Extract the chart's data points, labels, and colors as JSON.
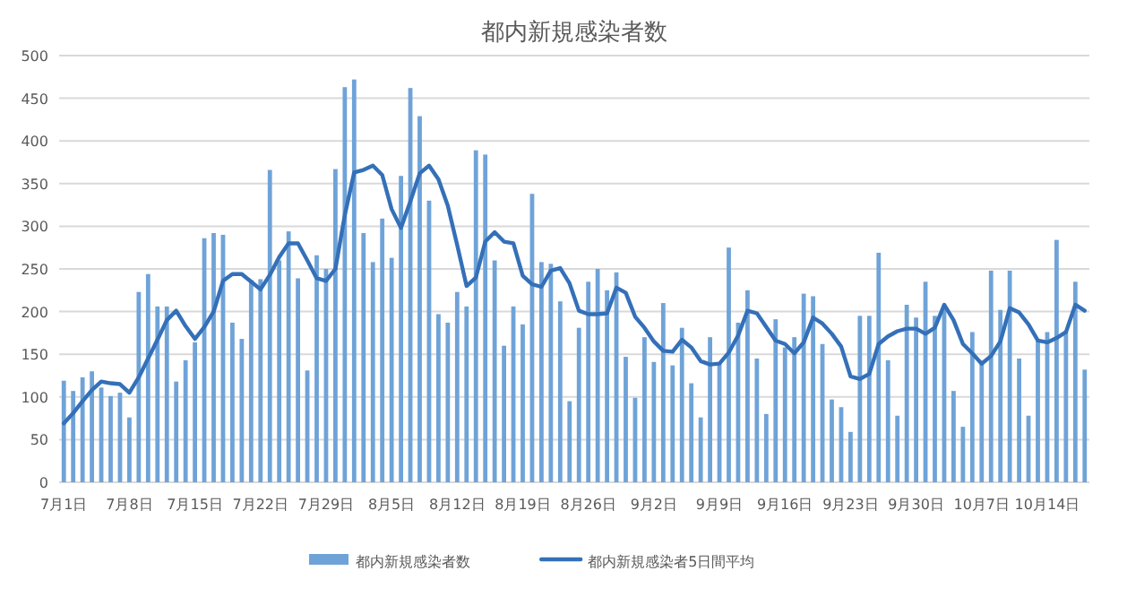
{
  "chart_data": {
    "type": "bar",
    "title": "都内新規感染者数",
    "categories": [
      "7月1日",
      null,
      null,
      null,
      null,
      null,
      null,
      "7月8日",
      null,
      null,
      null,
      null,
      null,
      null,
      "7月15日",
      null,
      null,
      null,
      null,
      null,
      null,
      "7月22日",
      null,
      null,
      null,
      null,
      null,
      null,
      "7月29日",
      null,
      null,
      null,
      null,
      null,
      null,
      "8月5日",
      null,
      null,
      null,
      null,
      null,
      null,
      "8月12日",
      null,
      null,
      null,
      null,
      null,
      null,
      "8月19日",
      null,
      null,
      null,
      null,
      null,
      null,
      "8月26日",
      null,
      null,
      null,
      null,
      null,
      null,
      "9月2日",
      null,
      null,
      null,
      null,
      null,
      null,
      "9月9日",
      null,
      null,
      null,
      null,
      null,
      null,
      "9月16日",
      null,
      null,
      null,
      null,
      null,
      null,
      "9月23日",
      null,
      null,
      null,
      null,
      null,
      null,
      "9月30日",
      null,
      null,
      null,
      null,
      null,
      null,
      "10月7日",
      null,
      null,
      null,
      null,
      null,
      null,
      "10月14日",
      null,
      null,
      null,
      null
    ],
    "series": [
      {
        "name": "都内新規感染者数",
        "color": "#6fa3d8",
        "values": [
          119,
          107,
          123,
          130,
          111,
          101,
          105,
          76,
          223,
          244,
          206,
          206,
          118,
          143,
          164,
          286,
          292,
          290,
          187,
          168,
          237,
          238,
          366,
          260,
          294,
          239,
          131,
          266,
          250,
          367,
          463,
          472,
          292,
          258,
          309,
          263,
          359,
          462,
          429,
          330,
          197,
          187,
          223,
          206,
          389,
          384,
          260,
          160,
          206,
          185,
          338,
          258,
          256,
          212,
          95,
          181,
          235,
          250,
          225,
          246,
          147,
          99,
          170,
          141,
          210,
          137,
          181,
          116,
          76,
          170,
          139,
          275,
          187,
          225,
          145,
          80,
          191,
          158,
          170,
          221,
          218,
          162,
          97,
          88,
          59,
          195,
          195,
          269,
          143,
          78,
          208,
          193,
          235,
          195,
          208,
          107,
          65,
          176,
          139,
          248,
          202,
          248,
          145,
          78,
          168,
          176,
          284,
          176,
          235,
          132
        ]
      },
      {
        "name": "都内新規感染者5日間平均",
        "type": "line",
        "color": "#3470b8",
        "values": [
          69,
          81,
          95,
          108,
          118,
          116,
          115,
          105,
          123,
          145,
          167,
          190,
          201,
          183,
          168,
          182,
          200,
          236,
          244,
          244,
          235,
          226,
          243,
          264,
          280,
          280,
          260,
          239,
          236,
          250,
          313,
          363,
          366,
          371,
          360,
          320,
          298,
          329,
          362,
          371,
          355,
          324,
          278,
          230,
          240,
          282,
          293,
          282,
          280,
          242,
          232,
          229,
          248,
          251,
          233,
          201,
          197,
          197,
          198,
          228,
          222,
          194,
          181,
          165,
          154,
          153,
          167,
          158,
          142,
          138,
          139,
          152,
          172,
          201,
          198,
          182,
          166,
          162,
          151,
          164,
          193,
          186,
          174,
          159,
          124,
          121,
          127,
          162,
          171,
          177,
          180,
          180,
          174,
          181,
          208,
          190,
          162,
          151,
          139,
          148,
          165,
          204,
          199,
          185,
          166,
          164,
          169,
          176,
          208,
          201
        ]
      }
    ],
    "ylim": [
      0,
      500
    ],
    "yticks": [
      0,
      50,
      100,
      150,
      200,
      250,
      300,
      350,
      400,
      450,
      500
    ],
    "grid": "y",
    "legend": "bottom"
  }
}
